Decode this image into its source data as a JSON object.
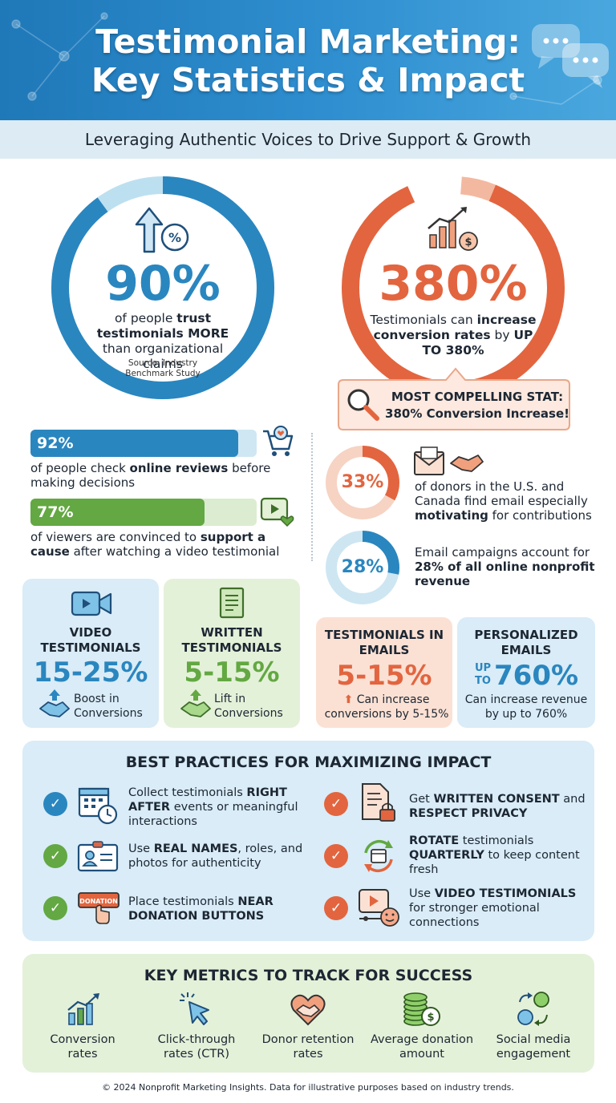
{
  "header": {
    "title_line1": "Testimonial Marketing:",
    "title_line2": "Key Statistics & Impact",
    "subtitle": "Leveraging Authentic Voices to Drive Support & Growth"
  },
  "colors": {
    "blue": "#2a86bf",
    "light_blue": "#bde0f0",
    "orange": "#e0694a",
    "light_orange": "#f6c7b4",
    "green": "#63a842",
    "light_green": "#dcecd0"
  },
  "stat_trust": {
    "value": "90%",
    "fraction": 0.9,
    "desc_a": "of people ",
    "desc_b": "trust testimonials MORE",
    "desc_c": " than organizational claims",
    "source": "Source: Industry Benchmark Study",
    "icon": "arrow-up-percent-icon"
  },
  "stat_conversion": {
    "value": "380%",
    "desc_a": "Testimonials can ",
    "desc_b": "increase conversion rates",
    "desc_c": " by ",
    "desc_d": "UP TO 380%",
    "callout_line1": "MOST COMPELLING STAT:",
    "callout_line2": "380% Conversion Increase!",
    "icon": "growth-chart-dollar-icon"
  },
  "bars": [
    {
      "value": "92%",
      "fraction": 0.92,
      "desc_a": "of people check ",
      "desc_b": "online reviews",
      "desc_c": " before making decisions",
      "icon": "shopping-cart-icon"
    },
    {
      "value": "77%",
      "fraction": 0.77,
      "desc_a": "of viewers are convinced to ",
      "desc_b": "support a cause",
      "desc_c": " after watching a video testimonial",
      "icon": "video-heart-icon"
    }
  ],
  "donuts": [
    {
      "value": "33%",
      "fraction": 0.33,
      "desc_a": "of donors in the U.S. and Canada find email especially ",
      "desc_b": "motivating",
      "desc_c": " for contributions",
      "icon": "envelope-handshake-icon"
    },
    {
      "value": "28%",
      "fraction": 0.28,
      "desc_a": "Email campaigns account for ",
      "desc_b": "28% of all online nonprofit revenue",
      "desc_c": ""
    }
  ],
  "cards": [
    {
      "title": "VIDEO TESTIMONIALS",
      "value": "15-25%",
      "desc": "Boost in Conversions",
      "icon": "video-camera-icon"
    },
    {
      "title": "WRITTEN TESTIMONIALS",
      "value": "5-15%",
      "desc": "Lift in Conversions",
      "icon": "document-icon"
    },
    {
      "title": "TESTIMONIALS IN EMAILS",
      "value": "5-15%",
      "desc": "Can increase conversions by 5-15%"
    },
    {
      "title": "PERSONALIZED EMAILS",
      "value_prefix_1": "UP",
      "value_prefix_2": "TO",
      "value": "760%",
      "desc": "Can increase revenue by up to 760%"
    }
  ],
  "best_practices": {
    "title": "BEST PRACTICES FOR MAXIMIZING IMPACT",
    "items": [
      {
        "a": "Collect testimonials ",
        "b": "RIGHT AFTER",
        "c": " events or meaningful interactions",
        "icon": "calendar-clock-icon"
      },
      {
        "a": "Get ",
        "b": "WRITTEN CONSENT",
        "c": " and ",
        "d": "RESPECT PRIVACY",
        "icon": "document-lock-icon"
      },
      {
        "a": "Use ",
        "b": "REAL NAMES",
        "c": ", roles, and photos for authenticity",
        "icon": "id-badge-icon"
      },
      {
        "a": "",
        "b": "ROTATE",
        "c": " testimonials ",
        "d": "QUARTERLY",
        "e": " to keep content fresh",
        "icon": "rotate-calendar-icon"
      },
      {
        "a": "Place testimonials ",
        "b": "NEAR DONATION BUTTONS",
        "c": "",
        "icon": "donate-button-icon",
        "button_text": "DONATION"
      },
      {
        "a": "Use ",
        "b": "VIDEO TESTIMONIALS",
        "c": " for stronger emotional connections",
        "icon": "video-play-smile-icon"
      }
    ]
  },
  "metrics": {
    "title": "KEY METRICS TO TRACK FOR SUCCESS",
    "items": [
      {
        "label": "Conversion rates",
        "icon": "bar-chart-arrow-icon"
      },
      {
        "label": "Click-through rates (CTR)",
        "icon": "cursor-click-icon"
      },
      {
        "label": "Donor retention rates",
        "icon": "heart-handshake-icon"
      },
      {
        "label": "Average donation amount",
        "icon": "coin-stack-icon"
      },
      {
        "label": "Social media engagement",
        "icon": "social-share-icon"
      }
    ]
  },
  "footer": "© 2024 Nonprofit Marketing Insights. Data for illustrative purposes based on industry trends."
}
